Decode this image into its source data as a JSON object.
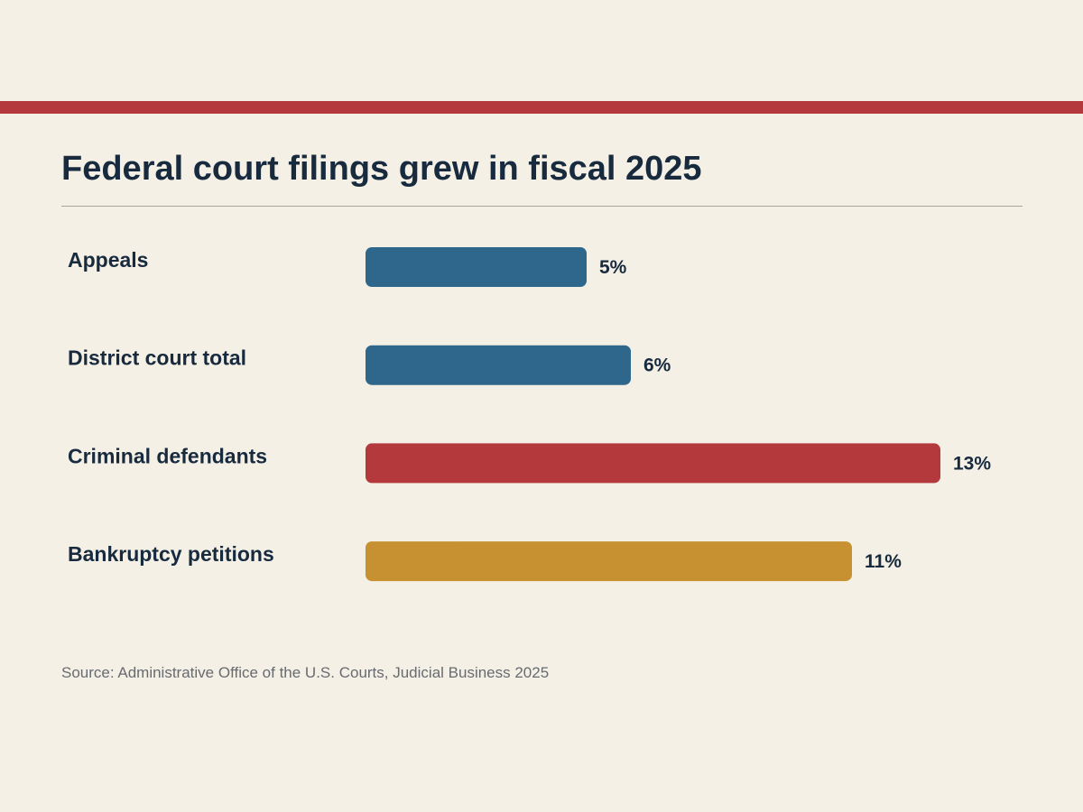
{
  "colors": {
    "background": "#f4f0e6",
    "accent_rule": "#b3393c",
    "text": "#172a3e",
    "blue": "#2f678c",
    "red": "#b3393c",
    "gold": "#c79131"
  },
  "chart_data": {
    "type": "bar",
    "orientation": "horizontal",
    "title": "Federal court filings grew in fiscal 2025",
    "categories": [
      "Appeals",
      "District court total",
      "Criminal defendants",
      "Bankruptcy petitions"
    ],
    "values": [
      5,
      6,
      13,
      11
    ],
    "value_labels": [
      "5%",
      "6%",
      "13%",
      "11%"
    ],
    "bar_colors": [
      "#2f678c",
      "#2f678c",
      "#b3393c",
      "#c79131"
    ],
    "unit": "%",
    "xlim": [
      0,
      13
    ],
    "grid": false,
    "legend": "none"
  },
  "footer": {
    "source": "Source: Administrative Office of the U.S. Courts, Judicial Business 2025"
  }
}
